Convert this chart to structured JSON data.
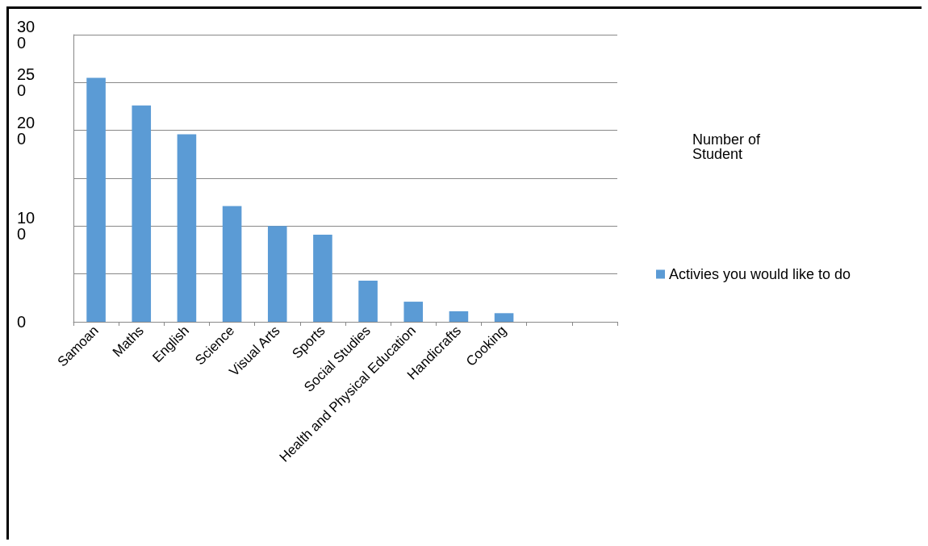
{
  "chart_data": {
    "type": "bar",
    "title": "Number of Student",
    "categories": [
      "Samoan",
      "Maths",
      "English",
      "Science",
      "Visual Arts",
      "Sports",
      "Social Studies",
      "Health and Physical Education",
      "Handicrafts",
      "Cooking",
      null,
      null
    ],
    "series": [
      {
        "name": "Activies you would like to do",
        "color": "#5b9bd5",
        "values": [
          255,
          226,
          196,
          121,
          100,
          91,
          43,
          21,
          11,
          9,
          null,
          null
        ]
      }
    ],
    "ylim": [
      0,
      300
    ],
    "yticks": [
      0,
      {
        "value": 50,
        "label": null
      },
      100,
      {
        "value": 150,
        "label": null
      },
      200,
      250,
      300
    ],
    "grid": "y",
    "legend": "right"
  }
}
